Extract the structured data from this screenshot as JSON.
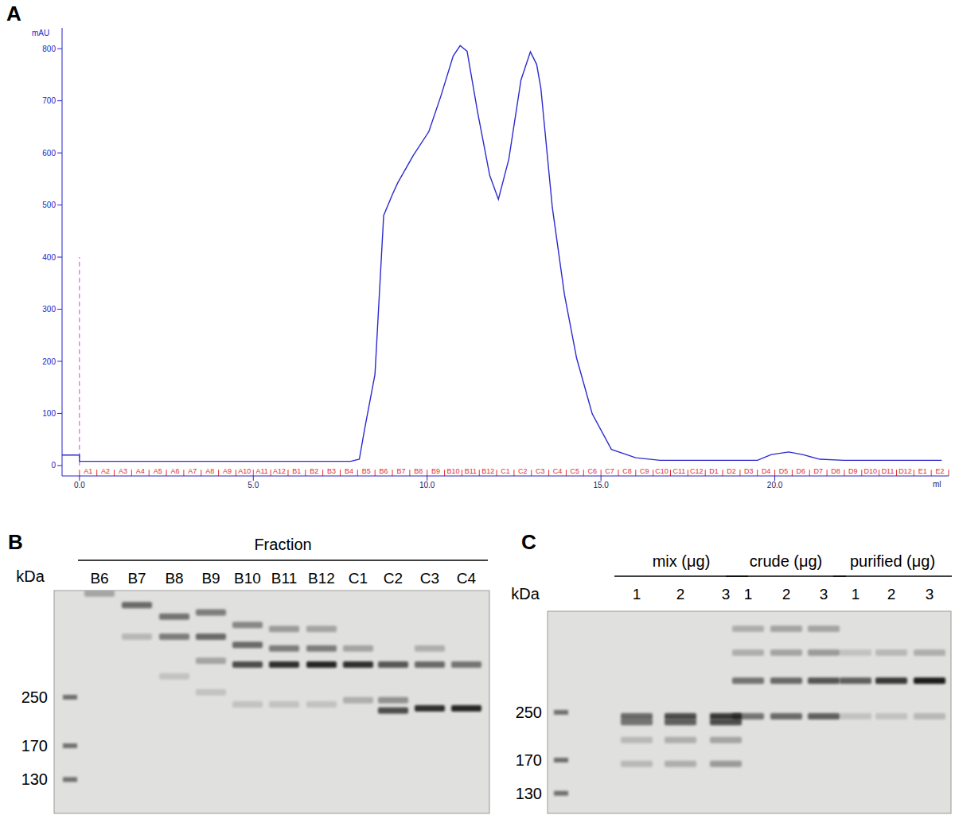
{
  "panel_labels": [
    "A",
    "B",
    "C"
  ],
  "chart_data": {
    "type": "line",
    "x_label": "ml",
    "y_label": "mAU",
    "xlim": [
      -0.5,
      25
    ],
    "ylim": [
      -20,
      840
    ],
    "xticks": [
      {
        "value": 0,
        "label": "0.0"
      },
      {
        "value": 5,
        "label": "5.0"
      },
      {
        "value": 10,
        "label": "10.0"
      },
      {
        "value": 15,
        "label": "15.0"
      },
      {
        "value": 20,
        "label": "20.0"
      }
    ],
    "yticks": [
      0,
      100,
      200,
      300,
      400,
      500,
      600,
      700,
      800
    ],
    "grid": false,
    "color": "#2b2bd0",
    "x": [
      -0.5,
      0,
      0,
      2,
      4,
      6,
      7.8,
      8.05,
      8.2,
      8.5,
      8.75,
      9.0,
      9.15,
      9.6,
      10.05,
      10.4,
      10.75,
      10.95,
      11.15,
      11.45,
      11.8,
      12.05,
      12.35,
      12.7,
      12.97,
      13.15,
      13.27,
      13.6,
      13.95,
      14.3,
      14.75,
      15.3,
      16.0,
      16.7,
      18,
      19.5,
      19.9,
      20.4,
      20.8,
      21.3,
      22,
      24,
      24.8
    ],
    "values": [
      20,
      20,
      8,
      8,
      8,
      8,
      8,
      12,
      69,
      175,
      480,
      520,
      542,
      595,
      641,
      710,
      786,
      806,
      795,
      679,
      557,
      511,
      588,
      740,
      794,
      770,
      725,
      496,
      328,
      206,
      99,
      31,
      15,
      10,
      10,
      10,
      21,
      26,
      21,
      12,
      10,
      10,
      10
    ],
    "injection": {
      "x": 0,
      "y": 400,
      "color": "#e040e0",
      "line_style": "dashed"
    },
    "fractions": {
      "color": "#e03030",
      "labels": [
        "A1",
        "A2",
        "A3",
        "A4",
        "A5",
        "A6",
        "A7",
        "A8",
        "A9",
        "A10",
        "A11",
        "A12",
        "B1",
        "B2",
        "B3",
        "B4",
        "B5",
        "B6",
        "B7",
        "B8",
        "B9",
        "B10",
        "B11",
        "B12",
        "C1",
        "C2",
        "C3",
        "C4",
        "C5",
        "C6",
        "C7",
        "C8",
        "C9",
        "C10",
        "C11",
        "C12",
        "D1",
        "D2",
        "D3",
        "D4",
        "D5",
        "D6",
        "D7",
        "D8",
        "D9",
        "D10",
        "D11",
        "D12",
        "E1",
        "E2"
      ],
      "x": [
        0,
        0.5,
        1,
        1.5,
        2,
        2.5,
        3,
        3.5,
        4,
        4.5,
        5,
        5.5,
        6,
        6.5,
        7,
        7.5,
        8,
        8.5,
        9,
        9.5,
        10,
        10.5,
        11,
        11.5,
        12,
        12.5,
        13,
        13.5,
        14,
        14.5,
        15,
        15.5,
        16,
        16.5,
        17,
        17.5,
        18,
        18.5,
        19,
        19.5,
        20,
        20.5,
        21,
        21.5,
        22,
        22.5,
        23,
        23.5,
        24,
        24.5
      ]
    }
  },
  "gels": [
    {
      "unit": "kDa",
      "header": "Fraction",
      "markers": [
        250,
        170,
        130
      ],
      "groups": [
        {
          "label": "Fraction",
          "lanes": [
            {
              "label": "B6",
              "bands": [
                {
                  "kDa": 570,
                  "intensity": 0.3
                }
              ]
            },
            {
              "label": "B7",
              "bands": [
                {
                  "kDa": 520,
                  "intensity": 0.6
                },
                {
                  "kDa": 404,
                  "intensity": 0.2
                }
              ]
            },
            {
              "label": "B8",
              "bands": [
                {
                  "kDa": 474,
                  "intensity": 0.55
                },
                {
                  "kDa": 404,
                  "intensity": 0.5
                },
                {
                  "kDa": 295,
                  "intensity": 0.15
                }
              ]
            },
            {
              "label": "B9",
              "bands": [
                {
                  "kDa": 490,
                  "intensity": 0.5
                },
                {
                  "kDa": 404,
                  "intensity": 0.6
                },
                {
                  "kDa": 334,
                  "intensity": 0.3
                },
                {
                  "kDa": 260,
                  "intensity": 0.15
                }
              ]
            },
            {
              "label": "B10",
              "bands": [
                {
                  "kDa": 444,
                  "intensity": 0.45
                },
                {
                  "kDa": 379,
                  "intensity": 0.6
                },
                {
                  "kDa": 324,
                  "intensity": 0.75
                },
                {
                  "kDa": 236,
                  "intensity": 0.15
                }
              ]
            },
            {
              "label": "B11",
              "bands": [
                {
                  "kDa": 430,
                  "intensity": 0.35
                },
                {
                  "kDa": 368,
                  "intensity": 0.5
                },
                {
                  "kDa": 324,
                  "intensity": 0.9
                },
                {
                  "kDa": 236,
                  "intensity": 0.15
                }
              ]
            },
            {
              "label": "B12",
              "bands": [
                {
                  "kDa": 430,
                  "intensity": 0.3
                },
                {
                  "kDa": 368,
                  "intensity": 0.5
                },
                {
                  "kDa": 324,
                  "intensity": 0.95
                },
                {
                  "kDa": 236,
                  "intensity": 0.15
                }
              ]
            },
            {
              "label": "C1",
              "bands": [
                {
                  "kDa": 368,
                  "intensity": 0.3
                },
                {
                  "kDa": 324,
                  "intensity": 0.9
                },
                {
                  "kDa": 244,
                  "intensity": 0.25
                }
              ]
            },
            {
              "label": "C2",
              "bands": [
                {
                  "kDa": 324,
                  "intensity": 0.7
                },
                {
                  "kDa": 244,
                  "intensity": 0.4
                },
                {
                  "kDa": 225,
                  "intensity": 0.75
                }
              ]
            },
            {
              "label": "C3",
              "bands": [
                {
                  "kDa": 368,
                  "intensity": 0.25
                },
                {
                  "kDa": 324,
                  "intensity": 0.6
                },
                {
                  "kDa": 229,
                  "intensity": 0.9
                }
              ]
            },
            {
              "label": "C4",
              "bands": [
                {
                  "kDa": 324,
                  "intensity": 0.55
                },
                {
                  "kDa": 229,
                  "intensity": 0.95
                }
              ]
            }
          ]
        }
      ]
    },
    {
      "unit": "kDa",
      "markers": [
        250,
        170,
        130
      ],
      "groups": [
        {
          "label": "mix (μg)",
          "lanes": [
            {
              "label": "1",
              "bands": [
                {
                  "kDa": 242,
                  "intensity": 0.6
                },
                {
                  "kDa": 231,
                  "intensity": 0.55
                },
                {
                  "kDa": 200,
                  "intensity": 0.2
                },
                {
                  "kDa": 165,
                  "intensity": 0.2
                }
              ]
            },
            {
              "label": "2",
              "bands": [
                {
                  "kDa": 242,
                  "intensity": 0.75
                },
                {
                  "kDa": 231,
                  "intensity": 0.65
                },
                {
                  "kDa": 200,
                  "intensity": 0.25
                },
                {
                  "kDa": 165,
                  "intensity": 0.25
                }
              ]
            },
            {
              "label": "3",
              "bands": [
                {
                  "kDa": 242,
                  "intensity": 0.85
                },
                {
                  "kDa": 231,
                  "intensity": 0.75
                },
                {
                  "kDa": 200,
                  "intensity": 0.3
                },
                {
                  "kDa": 165,
                  "intensity": 0.35
                }
              ]
            }
          ]
        },
        {
          "label": "crude (μg)",
          "lanes": [
            {
              "label": "1",
              "bands": [
                {
                  "kDa": 491,
                  "intensity": 0.25
                },
                {
                  "kDa": 405,
                  "intensity": 0.25
                },
                {
                  "kDa": 323,
                  "intensity": 0.55
                },
                {
                  "kDa": 242,
                  "intensity": 0.55
                }
              ]
            },
            {
              "label": "2",
              "bands": [
                {
                  "kDa": 491,
                  "intensity": 0.3
                },
                {
                  "kDa": 405,
                  "intensity": 0.3
                },
                {
                  "kDa": 323,
                  "intensity": 0.6
                },
                {
                  "kDa": 242,
                  "intensity": 0.6
                }
              ]
            },
            {
              "label": "3",
              "bands": [
                {
                  "kDa": 491,
                  "intensity": 0.3
                },
                {
                  "kDa": 405,
                  "intensity": 0.35
                },
                {
                  "kDa": 323,
                  "intensity": 0.7
                },
                {
                  "kDa": 242,
                  "intensity": 0.65
                }
              ]
            }
          ]
        },
        {
          "label": "purified (μg)",
          "lanes": [
            {
              "label": "1",
              "bands": [
                {
                  "kDa": 405,
                  "intensity": 0.15
                },
                {
                  "kDa": 323,
                  "intensity": 0.65
                },
                {
                  "kDa": 242,
                  "intensity": 0.15
                }
              ]
            },
            {
              "label": "2",
              "bands": [
                {
                  "kDa": 405,
                  "intensity": 0.2
                },
                {
                  "kDa": 323,
                  "intensity": 0.85
                },
                {
                  "kDa": 242,
                  "intensity": 0.15
                }
              ]
            },
            {
              "label": "3",
              "bands": [
                {
                  "kDa": 405,
                  "intensity": 0.25
                },
                {
                  "kDa": 323,
                  "intensity": 1.0
                },
                {
                  "kDa": 242,
                  "intensity": 0.2
                }
              ]
            }
          ]
        }
      ]
    }
  ]
}
